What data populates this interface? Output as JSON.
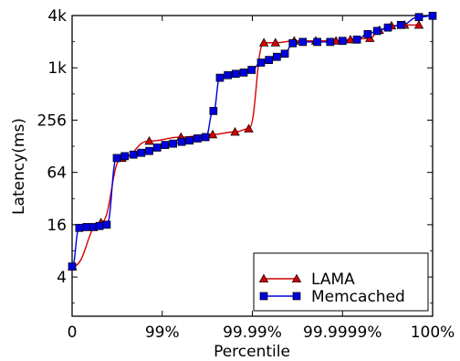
{
  "chart_data": {
    "type": "line",
    "title": "",
    "xlabel": "Percentile",
    "ylabel": "Latency(ms)",
    "x_ticks": [
      "0",
      "99%",
      "99.99%",
      "99.9999%",
      "100%"
    ],
    "y_ticks": [
      "4",
      "16",
      "64",
      "256",
      "1k",
      "4k"
    ],
    "x_scale": "log-tail percentile (0 … 100%)",
    "y_scale": "log2",
    "ylim_log2": [
      0.5,
      12
    ],
    "grid": false,
    "legend_position": "bottom-right",
    "series": [
      {
        "name": "LAMA",
        "color": "#d40000",
        "marker": "triangle",
        "points": [
          [
            0.005,
            2.4
          ],
          [
            0.4,
            4.08
          ],
          [
            0.69,
            6.55
          ],
          [
            1.07,
            7.2
          ],
          [
            1.51,
            7.35
          ],
          [
            1.95,
            7.45
          ],
          [
            2.26,
            7.55
          ],
          [
            2.45,
            7.67
          ],
          [
            2.66,
            10.96
          ],
          [
            2.82,
            10.96
          ],
          [
            3.08,
            11.03
          ],
          [
            3.38,
            11.03
          ],
          [
            3.66,
            11.03
          ],
          [
            3.86,
            11.08
          ],
          [
            4.13,
            11.13
          ],
          [
            4.26,
            11.44
          ],
          [
            4.43,
            11.61
          ],
          [
            4.61,
            11.64
          ],
          [
            4.81,
            11.64
          ]
        ]
      },
      {
        "name": "Memcached",
        "color": "#0000dd",
        "marker": "square",
        "points": [
          [
            0.0,
            2.4
          ],
          [
            0.1,
            3.88
          ],
          [
            0.2,
            3.91
          ],
          [
            0.3,
            3.91
          ],
          [
            0.38,
            3.95
          ],
          [
            0.48,
            4.0
          ],
          [
            0.62,
            6.55
          ],
          [
            0.73,
            6.62
          ],
          [
            0.85,
            6.68
          ],
          [
            0.96,
            6.75
          ],
          [
            1.07,
            6.82
          ],
          [
            1.18,
            6.95
          ],
          [
            1.29,
            7.05
          ],
          [
            1.4,
            7.1
          ],
          [
            1.52,
            7.17
          ],
          [
            1.63,
            7.22
          ],
          [
            1.74,
            7.3
          ],
          [
            1.85,
            7.35
          ],
          [
            1.96,
            8.35
          ],
          [
            2.05,
            9.62
          ],
          [
            2.16,
            9.72
          ],
          [
            2.27,
            9.77
          ],
          [
            2.38,
            9.82
          ],
          [
            2.49,
            9.92
          ],
          [
            2.62,
            10.2
          ],
          [
            2.73,
            10.3
          ],
          [
            2.84,
            10.42
          ],
          [
            2.95,
            10.54
          ],
          [
            3.06,
            10.94
          ],
          [
            3.2,
            10.99
          ],
          [
            3.4,
            10.99
          ],
          [
            3.58,
            10.99
          ],
          [
            3.75,
            11.03
          ],
          [
            3.95,
            11.08
          ],
          [
            4.1,
            11.29
          ],
          [
            4.23,
            11.41
          ],
          [
            4.38,
            11.54
          ],
          [
            4.56,
            11.64
          ],
          [
            4.81,
            11.94
          ],
          [
            5.0,
            11.99
          ]
        ]
      }
    ]
  }
}
